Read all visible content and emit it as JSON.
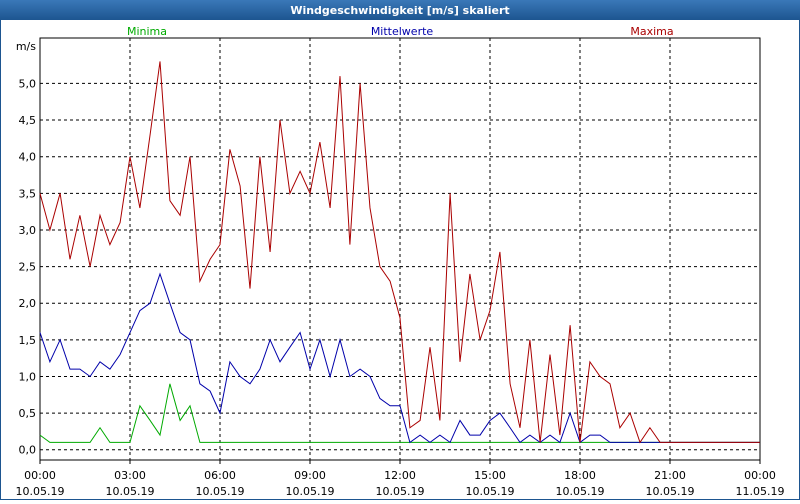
{
  "chart_data": {
    "type": "line",
    "title": "Windgeschwindigkeit [m/s] skaliert",
    "y_label": "m/s",
    "x": [
      0,
      0.33,
      0.67,
      1,
      1.33,
      1.67,
      2,
      2.33,
      2.67,
      3,
      3.33,
      3.67,
      4,
      4.33,
      4.67,
      5,
      5.33,
      5.67,
      6,
      6.33,
      6.67,
      7,
      7.33,
      7.67,
      8,
      8.33,
      8.67,
      9,
      9.33,
      9.67,
      10,
      10.33,
      10.67,
      11,
      11.33,
      11.67,
      12,
      12.33,
      12.67,
      13,
      13.33,
      13.67,
      14,
      14.33,
      14.67,
      15,
      15.33,
      15.67,
      16,
      16.33,
      16.67,
      17,
      17.33,
      17.67,
      18,
      18.33,
      18.67,
      19,
      19.33,
      19.67,
      20,
      20.33,
      20.67,
      21,
      21.33,
      21.67,
      22,
      22.33,
      22.67,
      23,
      23.33,
      23.67,
      24
    ],
    "series": [
      {
        "name": "Minima",
        "color": "#00aa00",
        "values": [
          0.2,
          0.1,
          0.1,
          0.1,
          0.1,
          0.1,
          0.3,
          0.1,
          0.1,
          0.1,
          0.6,
          0.4,
          0.2,
          0.9,
          0.4,
          0.6,
          0.1,
          0.1,
          0.1,
          0.1,
          0.1,
          0.1,
          0.1,
          0.1,
          0.1,
          0.1,
          0.1,
          0.1,
          0.1,
          0.1,
          0.1,
          0.1,
          0.1,
          0.1,
          0.1,
          0.1,
          0.1,
          0.1,
          0.1,
          0.1,
          0.1,
          0.1,
          0.1,
          0.1,
          0.1,
          0.1,
          0.1,
          0.1,
          0.1,
          0.1,
          0.1,
          0.1,
          0.1,
          0.1,
          0.1,
          0.1,
          0.1,
          0.1,
          0.1,
          0.1,
          0.1,
          0.1,
          0.1,
          0.1,
          0.1,
          0.1,
          0.1,
          0.1,
          0.1,
          0.1,
          0.1,
          0.1,
          0.1
        ]
      },
      {
        "name": "Mittelwerte",
        "color": "#0000aa",
        "values": [
          1.6,
          1.2,
          1.5,
          1.1,
          1.1,
          1.0,
          1.2,
          1.1,
          1.3,
          1.6,
          1.9,
          2.0,
          2.4,
          2.0,
          1.6,
          1.5,
          0.9,
          0.8,
          0.5,
          1.2,
          1.0,
          0.9,
          1.1,
          1.5,
          1.2,
          1.4,
          1.6,
          1.1,
          1.5,
          1.0,
          1.5,
          1.0,
          1.1,
          1.0,
          0.7,
          0.6,
          0.6,
          0.1,
          0.2,
          0.1,
          0.2,
          0.1,
          0.4,
          0.2,
          0.2,
          0.4,
          0.5,
          0.3,
          0.1,
          0.2,
          0.1,
          0.2,
          0.1,
          0.5,
          0.1,
          0.2,
          0.2,
          0.1,
          0.1,
          0.1,
          0.1,
          0.1,
          0.1,
          0.1,
          0.1,
          0.1,
          0.1,
          0.1,
          0.1,
          0.1,
          0.1,
          0.1,
          0.1
        ]
      },
      {
        "name": "Maxima",
        "color": "#aa0000",
        "values": [
          3.5,
          3.0,
          3.5,
          2.6,
          3.2,
          2.5,
          3.2,
          2.8,
          3.1,
          4.0,
          3.3,
          4.3,
          5.3,
          3.4,
          3.2,
          4.0,
          2.3,
          2.6,
          2.8,
          4.1,
          3.6,
          2.2,
          4.0,
          2.7,
          4.5,
          3.5,
          3.8,
          3.5,
          4.2,
          3.3,
          5.1,
          2.8,
          5.0,
          3.3,
          2.5,
          2.3,
          1.8,
          0.3,
          0.4,
          1.4,
          0.4,
          3.5,
          1.2,
          2.4,
          1.5,
          1.9,
          2.7,
          0.9,
          0.3,
          1.5,
          0.1,
          1.3,
          0.2,
          1.7,
          0.1,
          1.2,
          1.0,
          0.9,
          0.3,
          0.5,
          0.1,
          0.3,
          0.1,
          0.1,
          0.1,
          0.1,
          0.1,
          0.1,
          0.1,
          0.1,
          0.1,
          0.1,
          0.1
        ]
      }
    ],
    "xlim": [
      0,
      24
    ],
    "xticks": [
      {
        "value": 0,
        "label": [
          "00:00",
          "10.05.19"
        ]
      },
      {
        "value": 3,
        "label": [
          "03:00",
          "10.05.19"
        ]
      },
      {
        "value": 6,
        "label": [
          "06:00",
          "10.05.19"
        ]
      },
      {
        "value": 9,
        "label": [
          "09:00",
          "10.05.19"
        ]
      },
      {
        "value": 12,
        "label": [
          "12:00",
          "10.05.19"
        ]
      },
      {
        "value": 15,
        "label": [
          "15:00",
          "10.05.19"
        ]
      },
      {
        "value": 18,
        "label": [
          "18:00",
          "10.05.19"
        ]
      },
      {
        "value": 21,
        "label": [
          "21:00",
          "10.05.19"
        ]
      },
      {
        "value": 24,
        "label": [
          "00:00",
          "11.05.19"
        ]
      }
    ],
    "ylim": [
      -0.14,
      5.62
    ],
    "yticks": [
      {
        "value": 0,
        "label": "0,0"
      },
      {
        "value": 0.5,
        "label": "0,5"
      },
      {
        "value": 1,
        "label": "1,0"
      },
      {
        "value": 1.5,
        "label": "1,5"
      },
      {
        "value": 2,
        "label": "2,0"
      },
      {
        "value": 2.5,
        "label": "2,5"
      },
      {
        "value": 3,
        "label": "3,0"
      },
      {
        "value": 3.5,
        "label": "3,5"
      },
      {
        "value": 4,
        "label": "4,0"
      },
      {
        "value": 4.5,
        "label": "4,5"
      },
      {
        "value": 5,
        "label": "5,0"
      }
    ],
    "grid": true
  }
}
